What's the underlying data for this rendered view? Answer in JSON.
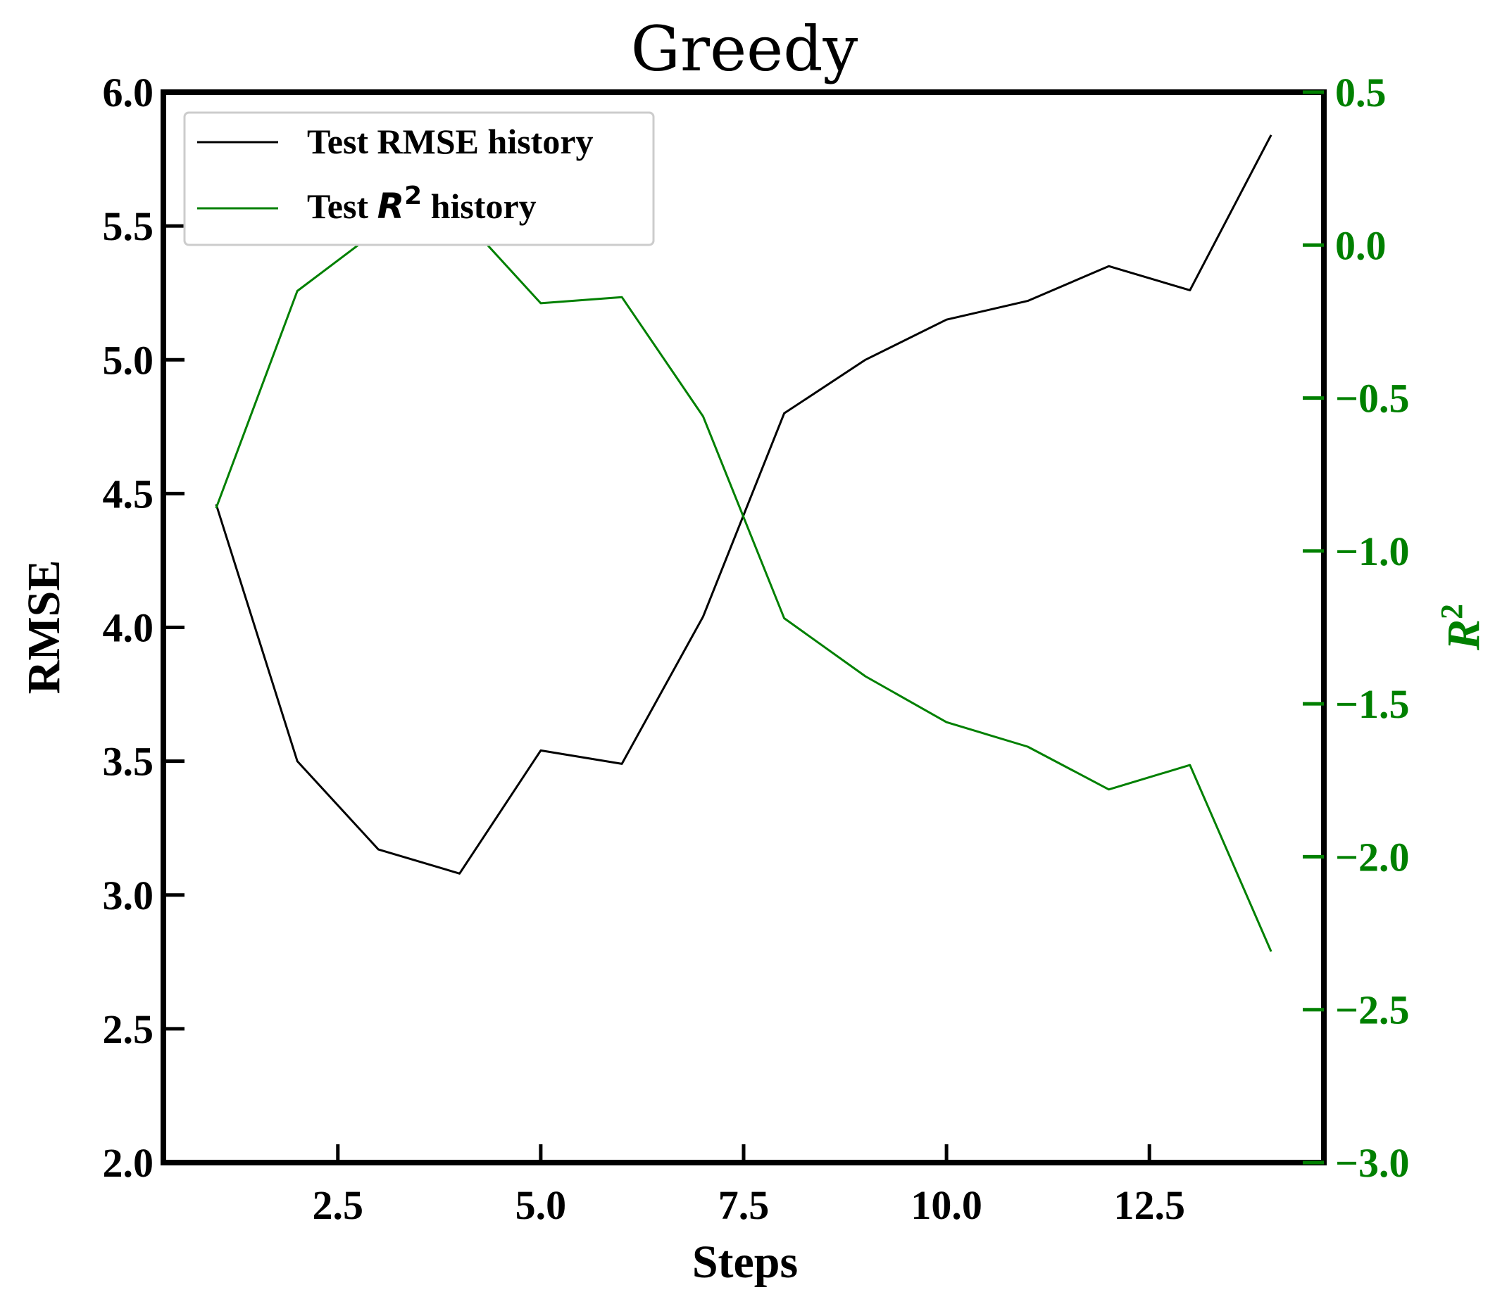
{
  "colors": {
    "rmse": "#000000",
    "r2": "#008000"
  },
  "chart_data": {
    "type": "line",
    "title": "Greedy",
    "xlabel": "Steps",
    "ylabel": "RMSE",
    "y2label": "R",
    "y2label_sup": "2",
    "xlim": [
      0.35,
      14.65
    ],
    "ylim": [
      2.0,
      6.0
    ],
    "y2lim": [
      -3.0,
      0.5
    ],
    "x_ticks": [
      2.5,
      5.0,
      7.5,
      10.0,
      12.5
    ],
    "x_tick_labels": [
      "2.5",
      "5.0",
      "7.5",
      "10.0",
      "12.5"
    ],
    "y_ticks": [
      2.0,
      2.5,
      3.0,
      3.5,
      4.0,
      4.5,
      5.0,
      5.5,
      6.0
    ],
    "y_tick_labels": [
      "2.0",
      "2.5",
      "3.0",
      "3.5",
      "4.0",
      "4.5",
      "5.0",
      "5.5",
      "6.0"
    ],
    "y2_ticks": [
      -3.0,
      -2.5,
      -2.0,
      -1.5,
      -1.0,
      -0.5,
      0.0,
      0.5
    ],
    "y2_tick_labels": [
      "−3.0",
      "−2.5",
      "−2.0",
      "−1.5",
      "−1.0",
      "−0.5",
      "0.0",
      "0.5"
    ],
    "legend_position": "upper-left",
    "x": [
      1,
      2,
      3,
      4,
      5,
      6,
      7,
      8,
      9,
      10,
      11,
      12,
      13,
      14
    ],
    "series": [
      {
        "name": "Test RMSE history",
        "axis": "left",
        "values": [
          4.46,
          3.5,
          3.17,
          3.08,
          3.54,
          3.49,
          4.04,
          4.8,
          5.0,
          5.15,
          5.22,
          5.35,
          5.26,
          5.84
        ]
      },
      {
        "name_prefix": "Test",
        "name_math": "R",
        "name_sup": "2",
        "name_suffix": "history",
        "axis": "right",
        "values": [
          -0.86,
          -0.15,
          0.05,
          0.1,
          -0.19,
          -0.17,
          -0.56,
          -1.22,
          -1.41,
          -1.56,
          -1.64,
          -1.78,
          -1.7,
          -2.31
        ]
      }
    ]
  }
}
